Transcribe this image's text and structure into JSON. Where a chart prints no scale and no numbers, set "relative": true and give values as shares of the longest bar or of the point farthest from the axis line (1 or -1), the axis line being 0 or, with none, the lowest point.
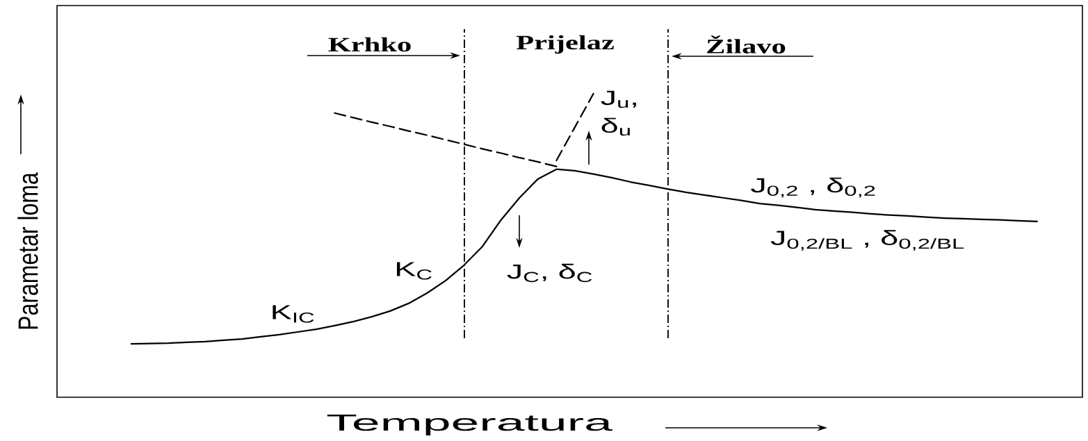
{
  "chart_data": {
    "type": "line",
    "relative": true,
    "xlabel": "Temperatura",
    "ylabel": "Parametar loma",
    "categories": [
      null,
      null,
      null,
      null,
      null,
      null,
      null,
      null,
      null,
      null,
      null,
      null,
      null,
      null,
      null,
      null,
      null,
      null,
      null,
      null,
      null,
      null,
      null,
      null,
      null,
      null,
      null,
      null,
      null,
      null,
      null,
      null,
      null,
      null,
      null,
      null,
      null,
      null,
      null,
      null,
      null,
      null,
      null,
      null,
      null,
      null,
      null,
      null,
      null,
      null
    ],
    "series": [
      {
        "color": "#000000",
        "line_style": "solid",
        "values": [
          0.176,
          0.177,
          0.178,
          0.181,
          0.183,
          0.188,
          0.192,
          0.199,
          0.206,
          0.215,
          0.224,
          0.236,
          0.249,
          0.265,
          0.284,
          0.309,
          0.343,
          0.384,
          0.435,
          0.497,
          0.584,
          0.657,
          0.719,
          0.751,
          0.746,
          0.735,
          0.723,
          0.709,
          0.698,
          0.686,
          0.675,
          0.666,
          0.657,
          0.648,
          0.638,
          0.632,
          0.625,
          0.618,
          0.613,
          0.609,
          0.604,
          0.6,
          0.597,
          0.593,
          0.59,
          0.588,
          0.586,
          0.584,
          0.581,
          0.579
        ]
      },
      {
        "color": "#000000",
        "line_style": "dashed",
        "values": [
          null,
          null,
          null,
          null,
          null,
          null,
          null,
          null,
          null,
          null,
          null,
          0.936,
          0.921,
          0.906,
          0.892,
          0.877,
          0.863,
          0.848,
          0.833,
          0.818,
          0.804,
          0.789,
          0.775,
          0.76,
          null,
          null,
          null,
          null,
          null,
          null,
          null,
          null,
          null,
          null,
          null,
          null,
          null,
          null,
          null,
          null,
          null,
          null,
          null,
          null,
          null,
          null,
          null,
          null,
          null,
          null
        ]
      },
      {
        "color": "#000000",
        "line_style": "dashed",
        "values": [
          null,
          null,
          null,
          null,
          null,
          null,
          null,
          null,
          null,
          null,
          null,
          null,
          null,
          null,
          null,
          null,
          null,
          null,
          null,
          null,
          null,
          null,
          null,
          0.78,
          0.89,
          1.0,
          null,
          null,
          null,
          null,
          null,
          null,
          null,
          null,
          null,
          null,
          null,
          null,
          null,
          null,
          null,
          null,
          null,
          null,
          null,
          null,
          null,
          null,
          null,
          null
        ]
      }
    ],
    "annotations": [
      "Krhko",
      "Prijelaz",
      "Žilavo",
      "K$_{IC}$",
      "K$_{C}$",
      "J$_{C}$, δ$_{C}$",
      "J$_{u}$, δ$_{u}$",
      "J$_{0,2}$ , δ$_{0,2}$",
      "J$_{0,2/BL}$ , δ$_{0,2/BL}$"
    ]
  }
}
